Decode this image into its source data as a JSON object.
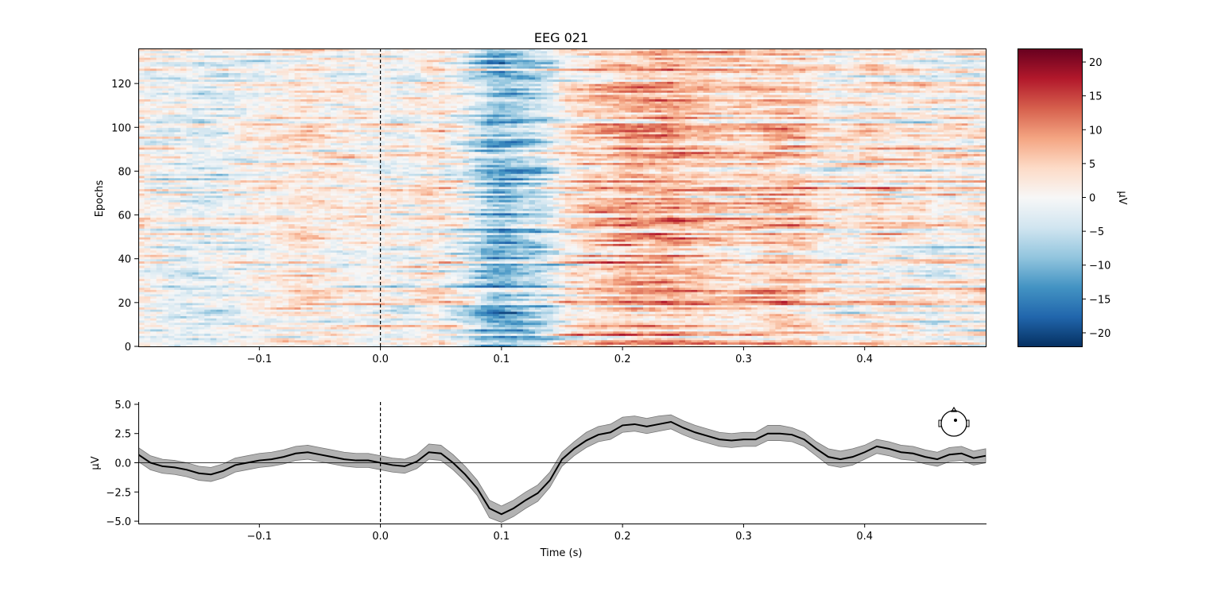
{
  "chart_data": [
    {
      "type": "heatmap",
      "title": "EEG 021",
      "xlabel": "",
      "ylabel": "Epochs",
      "xlim": [
        -0.2,
        0.5
      ],
      "ylim": [
        0,
        136
      ],
      "n_epochs": 136,
      "x_ticks": [
        -0.1,
        0.0,
        0.1,
        0.2,
        0.3,
        0.4
      ],
      "x_tick_labels": [
        "−0.1",
        "0.0",
        "0.1",
        "0.2",
        "0.3",
        "0.4"
      ],
      "y_ticks": [
        0,
        20,
        40,
        60,
        80,
        100,
        120
      ],
      "y_tick_labels": [
        "0",
        "20",
        "40",
        "60",
        "80",
        "100",
        "120"
      ],
      "event_marker_x": 0.0,
      "colormap": "RdBu_r",
      "cmap_colors": [
        "#053061",
        "#2166ac",
        "#4393c3",
        "#92c5de",
        "#d1e5f0",
        "#f7f7f7",
        "#fddbc7",
        "#f4a582",
        "#d6604d",
        "#b2182b",
        "#67001f"
      ],
      "colorbar": {
        "label": "µV",
        "range": [
          -22,
          22
        ],
        "ticks": [
          -20,
          -15,
          -10,
          -5,
          0,
          5,
          10,
          15,
          20
        ],
        "tick_labels": [
          "−20",
          "−15",
          "−10",
          "−5",
          "0",
          "5",
          "10",
          "15",
          "20"
        ]
      }
    },
    {
      "type": "line",
      "title": "",
      "xlabel": "Time (s)",
      "ylabel": "µV",
      "xlim": [
        -0.2,
        0.5
      ],
      "ylim": [
        -5.2,
        5.2
      ],
      "x_ticks": [
        -0.1,
        0.0,
        0.1,
        0.2,
        0.3,
        0.4
      ],
      "x_tick_labels": [
        "−0.1",
        "0.0",
        "0.1",
        "0.2",
        "0.3",
        "0.4"
      ],
      "y_ticks": [
        -5.0,
        -2.5,
        0.0,
        2.5,
        5.0
      ],
      "y_tick_labels": [
        "−5.0",
        "−2.5",
        "0.0",
        "2.5",
        "5.0"
      ],
      "event_marker_x": 0.0,
      "zero_line": true,
      "band_color": "#aaaaaa",
      "line_color": "#000000",
      "series": [
        {
          "x": [
            -0.2,
            -0.19,
            -0.18,
            -0.17,
            -0.16,
            -0.15,
            -0.14,
            -0.13,
            -0.12,
            -0.11,
            -0.1,
            -0.09,
            -0.08,
            -0.07,
            -0.06,
            -0.05,
            -0.04,
            -0.03,
            -0.02,
            -0.01,
            0.0,
            0.01,
            0.02,
            0.03,
            0.04,
            0.05,
            0.06,
            0.07,
            0.08,
            0.09,
            0.1,
            0.11,
            0.12,
            0.13,
            0.14,
            0.15,
            0.16,
            0.17,
            0.18,
            0.19,
            0.2,
            0.21,
            0.22,
            0.23,
            0.24,
            0.25,
            0.26,
            0.27,
            0.28,
            0.29,
            0.3,
            0.31,
            0.32,
            0.33,
            0.34,
            0.35,
            0.36,
            0.37,
            0.38,
            0.39,
            0.4,
            0.41,
            0.42,
            0.43,
            0.44,
            0.45,
            0.46,
            0.47,
            0.48,
            0.49,
            0.5
          ],
          "y": [
            0.7,
            0.0,
            -0.3,
            -0.4,
            -0.6,
            -0.9,
            -1.0,
            -0.7,
            -0.2,
            0.0,
            0.2,
            0.3,
            0.5,
            0.8,
            0.9,
            0.7,
            0.5,
            0.3,
            0.2,
            0.2,
            0.0,
            -0.2,
            -0.3,
            0.1,
            0.9,
            0.8,
            0.0,
            -1.0,
            -2.2,
            -3.9,
            -4.4,
            -3.9,
            -3.2,
            -2.6,
            -1.5,
            0.3,
            1.2,
            1.9,
            2.4,
            2.6,
            3.2,
            3.3,
            3.1,
            3.3,
            3.5,
            3.0,
            2.6,
            2.3,
            2.0,
            1.9,
            2.0,
            2.0,
            2.5,
            2.5,
            2.4,
            2.0,
            1.2,
            0.5,
            0.3,
            0.5,
            0.9,
            1.4,
            1.2,
            0.9,
            0.8,
            0.5,
            0.3,
            0.7,
            0.8,
            0.4,
            0.6
          ],
          "lower": [
            0.1,
            -0.6,
            -0.9,
            -1.0,
            -1.2,
            -1.5,
            -1.6,
            -1.3,
            -0.8,
            -0.6,
            -0.4,
            -0.3,
            -0.1,
            0.2,
            0.3,
            0.1,
            -0.1,
            -0.3,
            -0.4,
            -0.4,
            -0.6,
            -0.8,
            -0.9,
            -0.5,
            0.3,
            0.2,
            -0.6,
            -1.6,
            -2.8,
            -4.7,
            -5.1,
            -4.6,
            -3.9,
            -3.3,
            -2.1,
            -0.3,
            0.6,
            1.3,
            1.8,
            2.0,
            2.6,
            2.7,
            2.5,
            2.7,
            2.9,
            2.4,
            2.0,
            1.7,
            1.4,
            1.3,
            1.4,
            1.4,
            1.9,
            1.9,
            1.8,
            1.4,
            0.6,
            -0.2,
            -0.4,
            -0.2,
            0.3,
            0.8,
            0.6,
            0.3,
            0.2,
            -0.1,
            -0.3,
            0.1,
            0.2,
            -0.2,
            0.0
          ],
          "upper": [
            1.3,
            0.6,
            0.3,
            0.2,
            0.0,
            -0.3,
            -0.4,
            -0.1,
            0.4,
            0.6,
            0.8,
            0.9,
            1.1,
            1.4,
            1.5,
            1.3,
            1.1,
            0.9,
            0.8,
            0.8,
            0.6,
            0.4,
            0.3,
            0.7,
            1.6,
            1.5,
            0.7,
            -0.3,
            -1.5,
            -3.2,
            -3.7,
            -3.2,
            -2.5,
            -1.9,
            -0.8,
            0.9,
            1.8,
            2.6,
            3.1,
            3.3,
            3.9,
            4.0,
            3.8,
            4.0,
            4.1,
            3.6,
            3.2,
            2.9,
            2.6,
            2.5,
            2.6,
            2.6,
            3.2,
            3.2,
            3.0,
            2.6,
            1.8,
            1.2,
            1.0,
            1.2,
            1.5,
            2.0,
            1.8,
            1.5,
            1.4,
            1.1,
            0.9,
            1.3,
            1.4,
            1.0,
            1.2
          ]
        }
      ]
    }
  ]
}
